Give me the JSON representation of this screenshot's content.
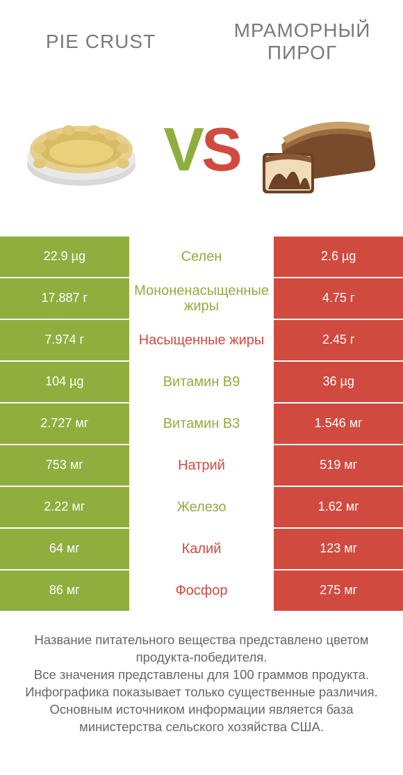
{
  "colors": {
    "left": "#8fae3e",
    "right": "#d14a3f",
    "leftValueText": "#ffffff",
    "rightValueText": "#ffffff",
    "labelLeft": "#8fae3e",
    "labelRight": "#d14a3f",
    "titleText": "#7a7a7a",
    "footText": "#666666",
    "background": "#ffffff"
  },
  "header": {
    "leftTitle": "Pie crust",
    "rightTitle": "Мраморный пирог",
    "vs": {
      "v": "V",
      "s": "S"
    }
  },
  "rows": [
    {
      "left": "22.9 µg",
      "label": "Селен",
      "right": "2.6 µg",
      "winner": "left"
    },
    {
      "left": "17.887 г",
      "label": "Мононенасыщенные жиры",
      "right": "4.75 г",
      "winner": "left"
    },
    {
      "left": "7.974 г",
      "label": "Насыщенные жиры",
      "right": "2.45 г",
      "winner": "right"
    },
    {
      "left": "104 µg",
      "label": "Витамин B9",
      "right": "36 µg",
      "winner": "left"
    },
    {
      "left": "2.727 мг",
      "label": "Витамин B3",
      "right": "1.546 мг",
      "winner": "left"
    },
    {
      "left": "753 мг",
      "label": "Натрий",
      "right": "519 мг",
      "winner": "right"
    },
    {
      "left": "2.22 мг",
      "label": "Железо",
      "right": "1.62 мг",
      "winner": "left"
    },
    {
      "left": "64 мг",
      "label": "Калий",
      "right": "123 мг",
      "winner": "right"
    },
    {
      "left": "86 мг",
      "label": "Фосфор",
      "right": "275 мг",
      "winner": "right"
    }
  ],
  "footnote": "Название питательного вещества представлено цветом продукта-победителя.\nВсе значения представлены для 100 граммов продукта.\nИнфографика показывает только существенные различия.\nОсновным источником информации является база министерства сельского хозяйства США."
}
